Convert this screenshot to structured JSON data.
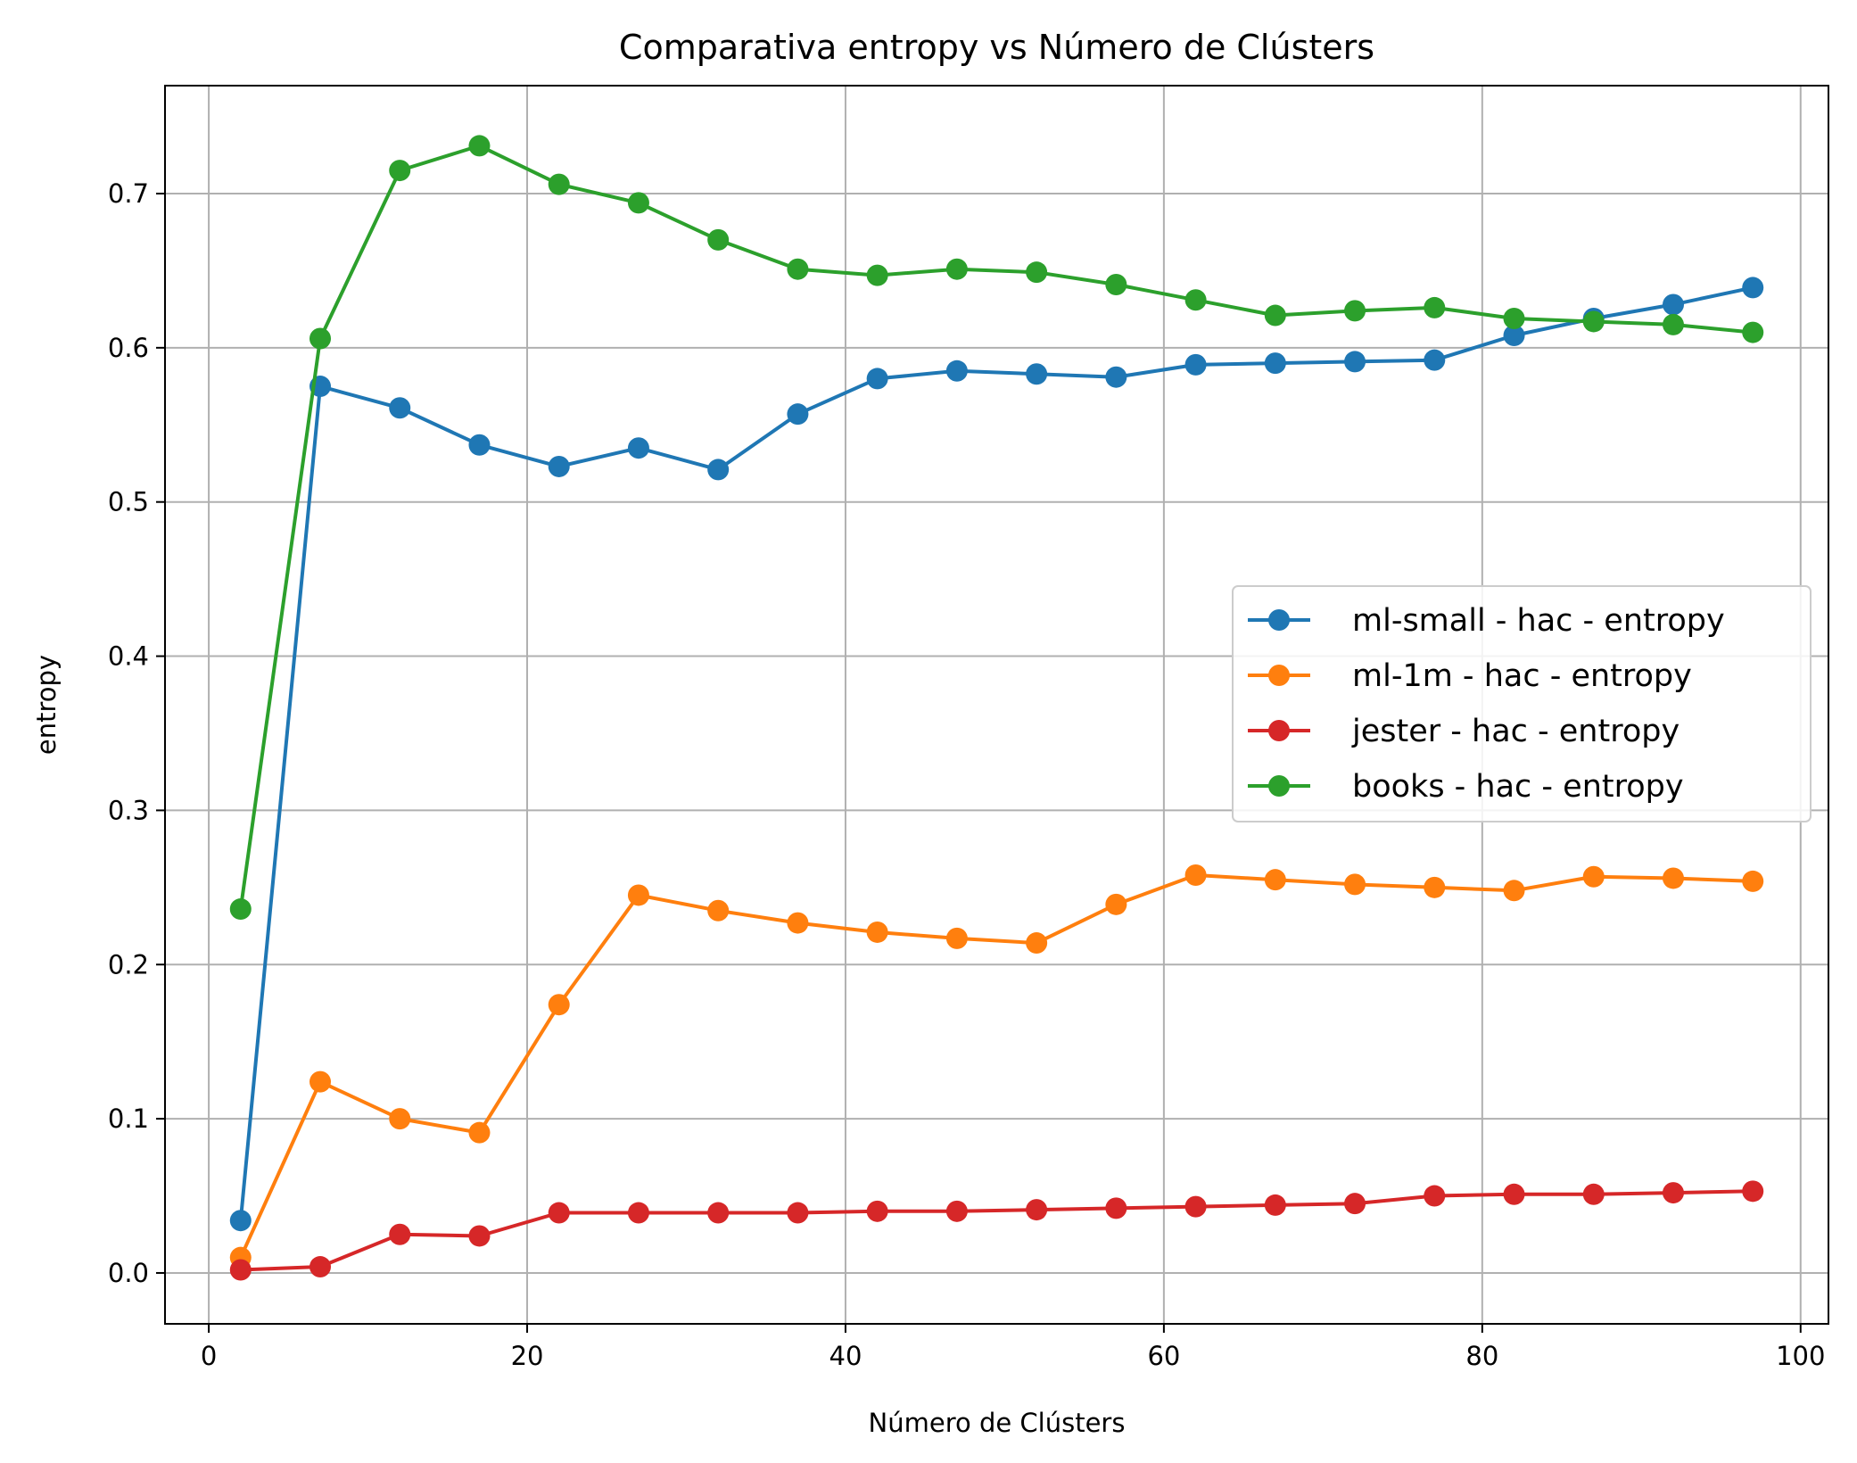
{
  "chart_data": {
    "type": "line",
    "title": "Comparativa entropy vs Número de Clústers",
    "xlabel": "Número de Clústers",
    "ylabel": "entropy",
    "xlim": [
      -2.75,
      101.75
    ],
    "ylim": [
      -0.033,
      0.77
    ],
    "xticks": [
      0,
      20,
      40,
      60,
      80,
      100
    ],
    "yticks": [
      0.0,
      0.1,
      0.2,
      0.3,
      0.4,
      0.5,
      0.6,
      0.7
    ],
    "xtick_labels": [
      "0",
      "20",
      "40",
      "60",
      "80",
      "100"
    ],
    "ytick_labels": [
      "0.0",
      "0.1",
      "0.2",
      "0.3",
      "0.4",
      "0.5",
      "0.6",
      "0.7"
    ],
    "grid": true,
    "legend_position": "center-right",
    "x": [
      2,
      7,
      12,
      17,
      22,
      27,
      32,
      37,
      42,
      47,
      52,
      57,
      62,
      67,
      72,
      77,
      82,
      87,
      92,
      97
    ],
    "series": [
      {
        "name": "ml-small - hac - entropy",
        "color": "#1f77b4",
        "values": [
          0.034,
          0.575,
          0.561,
          0.537,
          0.523,
          0.535,
          0.521,
          0.557,
          0.58,
          0.585,
          0.583,
          0.581,
          0.589,
          0.59,
          0.591,
          0.592,
          0.608,
          0.619,
          0.628,
          0.639
        ]
      },
      {
        "name": "ml-1m - hac - entropy",
        "color": "#ff7f0e",
        "values": [
          0.01,
          0.124,
          0.1,
          0.091,
          0.174,
          0.245,
          0.235,
          0.227,
          0.221,
          0.217,
          0.214,
          0.239,
          0.258,
          0.255,
          0.252,
          0.25,
          0.248,
          0.257,
          0.256,
          0.254
        ]
      },
      {
        "name": "jester - hac - entropy",
        "color": "#d62728",
        "values": [
          0.002,
          0.004,
          0.025,
          0.024,
          0.039,
          0.039,
          0.039,
          0.039,
          0.04,
          0.04,
          0.041,
          0.042,
          0.043,
          0.044,
          0.045,
          0.05,
          0.051,
          0.051,
          0.052,
          0.053
        ]
      },
      {
        "name": "books - hac - entropy",
        "color": "#2ca02c",
        "values": [
          0.236,
          0.606,
          0.715,
          0.731,
          0.706,
          0.694,
          0.67,
          0.651,
          0.647,
          0.651,
          0.649,
          0.641,
          0.631,
          0.621,
          0.624,
          0.626,
          0.619,
          0.617,
          0.615,
          0.61
        ]
      }
    ]
  }
}
